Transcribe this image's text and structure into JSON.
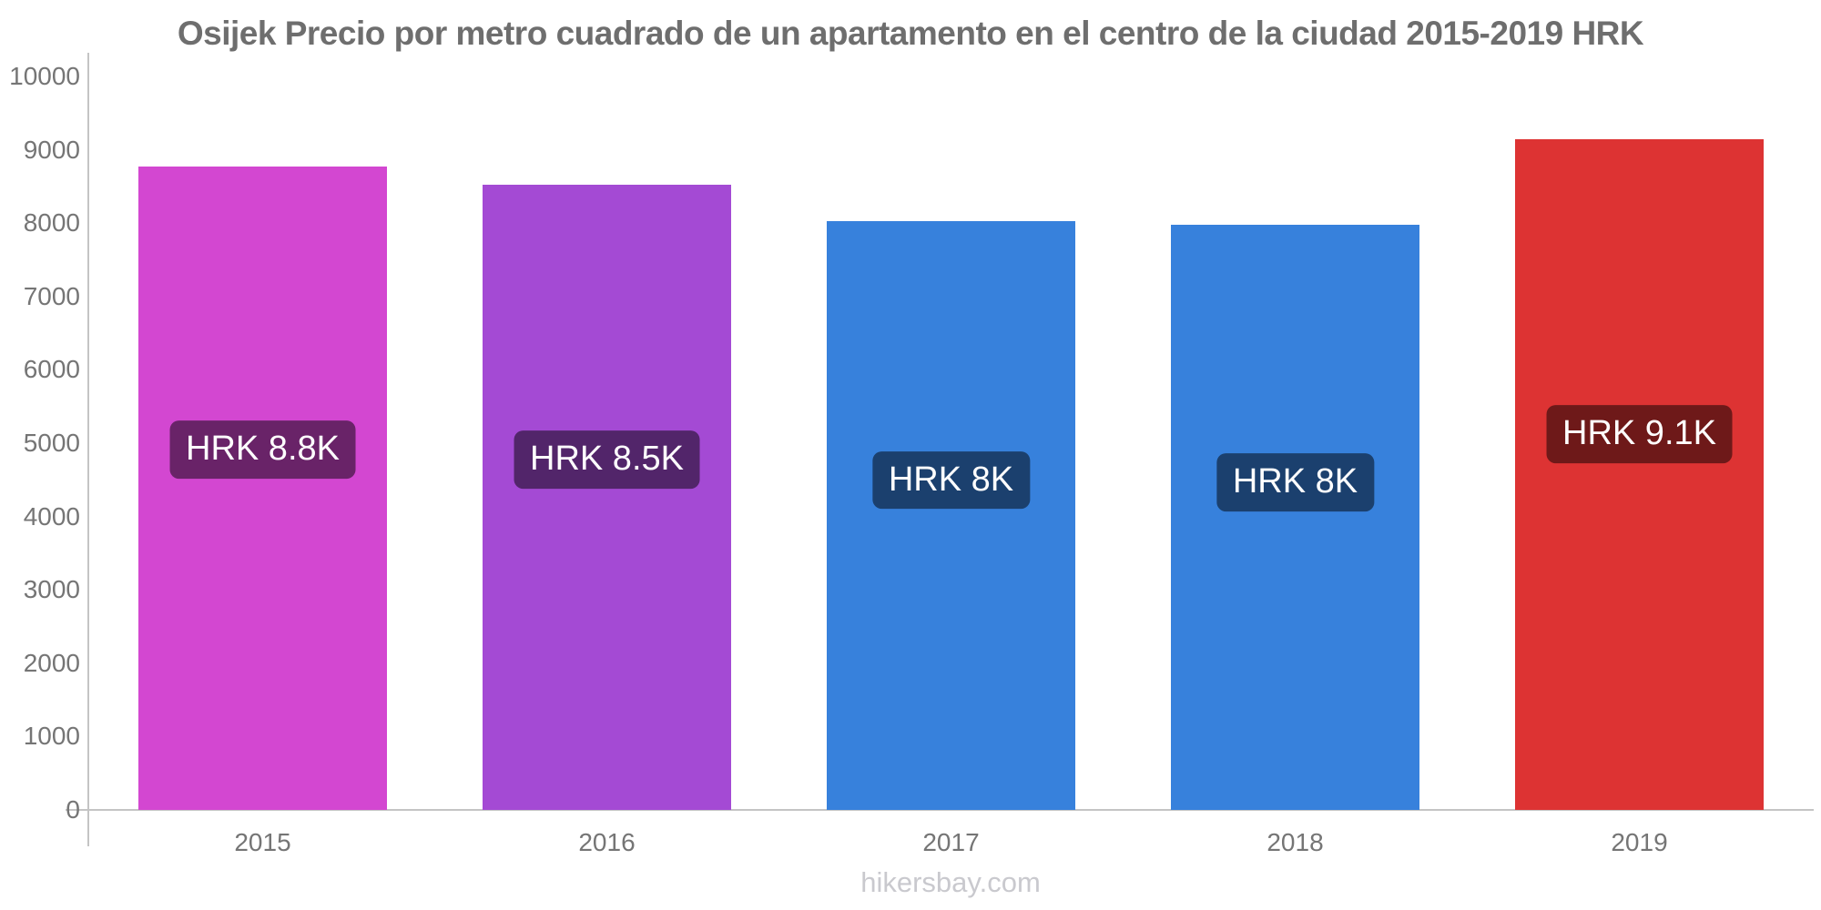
{
  "footer": {
    "text": "hikersbay.com"
  },
  "style_colors": {
    "title_text": "#6e6e6e",
    "axis_text": "#757575",
    "axis_line": "#c4c4c4",
    "bar_label_text": "#ffffff",
    "bar_label_bg": "rgba(0,0,0,0.5)",
    "watermark_text": "#c9c9ce",
    "bar_2015": "#d347d1",
    "bar_2016": "#a44ad4",
    "bar_2017": "#3781dc",
    "bar_2018": "#3781dc",
    "bar_2019": "#dd3333"
  },
  "chart_data": {
    "type": "bar",
    "title": "Osijek Precio por metro cuadrado de un apartamento en el centro de la ciudad 2015-2019 HRK",
    "currency": "HRK",
    "categories": [
      "2015",
      "2016",
      "2017",
      "2018",
      "2019"
    ],
    "values": [
      8770,
      8520,
      8030,
      7980,
      9140
    ],
    "bar_labels": [
      "HRK 8.8K",
      "HRK 8.5K",
      "HRK 8K",
      "HRK 8K",
      "HRK 9.1K"
    ],
    "bar_colors": [
      "#d347d1",
      "#a44ad4",
      "#3781dc",
      "#3781dc",
      "#dd3333"
    ],
    "xlabel": "",
    "ylabel": "",
    "ylim": [
      0,
      10000
    ],
    "y_ticks": [
      0,
      1000,
      2000,
      3000,
      4000,
      5000,
      6000,
      7000,
      8000,
      9000,
      10000
    ],
    "grid": false,
    "legend": false,
    "footer": "hikersbay.com"
  }
}
